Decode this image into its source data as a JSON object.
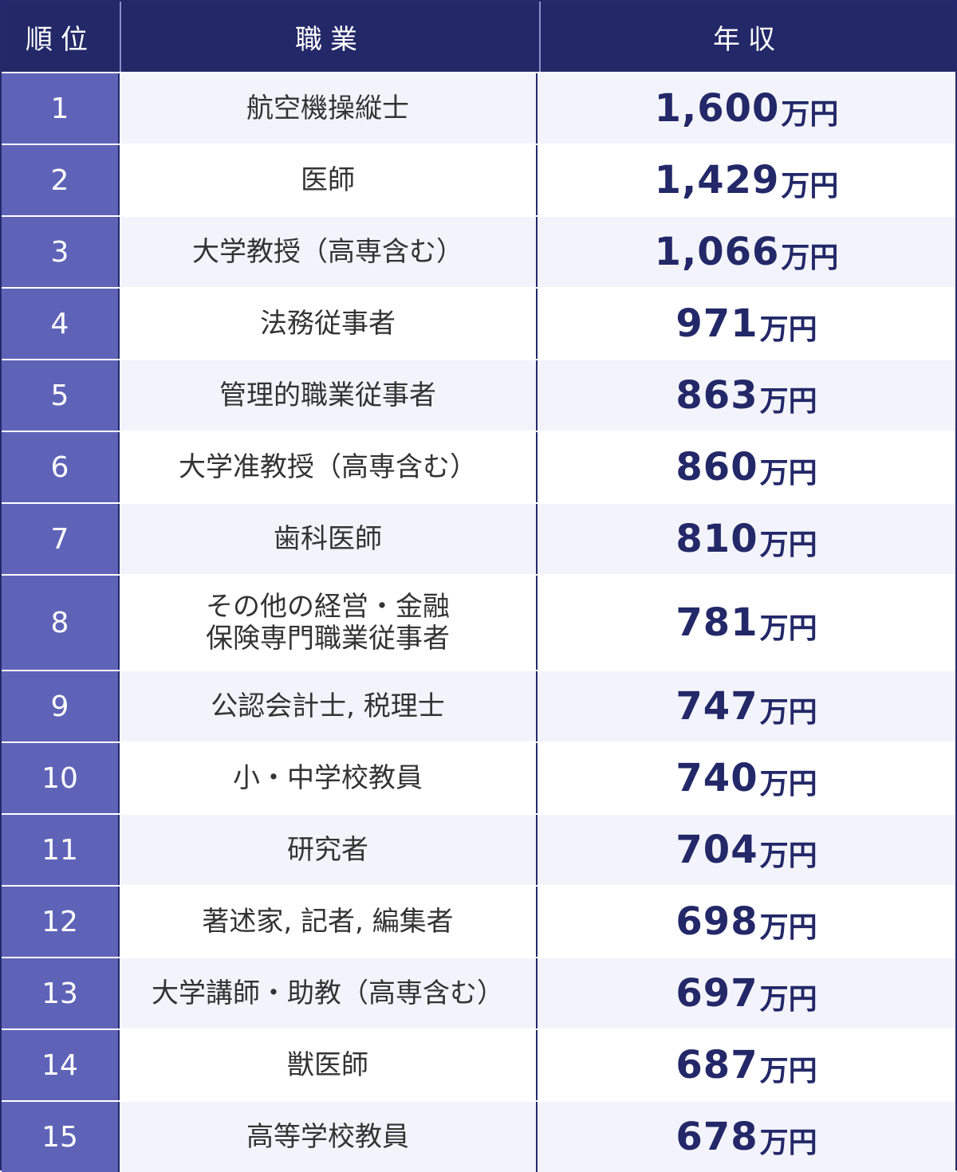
{
  "header": {
    "rank": "順位",
    "job": "職業",
    "salary": "年収"
  },
  "unit": "万円",
  "rows": [
    {
      "rank": "1",
      "job": "航空機操縦士",
      "salary": "1,600"
    },
    {
      "rank": "2",
      "job": "医師",
      "salary": "1,429"
    },
    {
      "rank": "3",
      "job": "大学教授（高専含む）",
      "salary": "1,066"
    },
    {
      "rank": "4",
      "job": "法務従事者",
      "salary": "971"
    },
    {
      "rank": "5",
      "job": "管理的職業従事者",
      "salary": "863"
    },
    {
      "rank": "6",
      "job": "大学准教授（高専含む）",
      "salary": "860"
    },
    {
      "rank": "7",
      "job": "歯科医師",
      "salary": "810"
    },
    {
      "rank": "8",
      "job": "その他の経営・金融\n保険専門職業従事者",
      "salary": "781"
    },
    {
      "rank": "9",
      "job": "公認会計士, 税理士",
      "salary": "747"
    },
    {
      "rank": "10",
      "job": "小・中学校教員",
      "salary": "740"
    },
    {
      "rank": "11",
      "job": "研究者",
      "salary": "704"
    },
    {
      "rank": "12",
      "job": "著述家, 記者, 編集者",
      "salary": "698"
    },
    {
      "rank": "13",
      "job": "大学講師・助教（高専含む）",
      "salary": "697"
    },
    {
      "rank": "14",
      "job": "獣医師",
      "salary": "687"
    },
    {
      "rank": "15",
      "job": "高等学校教員",
      "salary": "678"
    }
  ]
}
